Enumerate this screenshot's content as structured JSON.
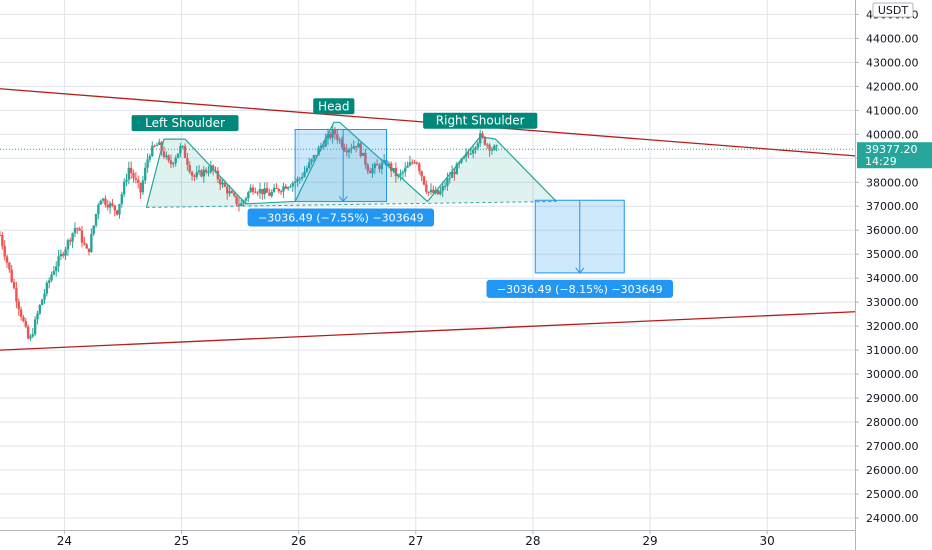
{
  "chart_data": {
    "type": "candlestick",
    "quote_currency": "USDT",
    "x_ticks": [
      "24",
      "25",
      "26",
      "27",
      "28",
      "29",
      "30"
    ],
    "xlim": [
      23.45,
      30.75
    ],
    "ylim": [
      23500,
      45600
    ],
    "y_ticks": [
      "24000.00",
      "25000.00",
      "26000.00",
      "27000.00",
      "28000.00",
      "29000.00",
      "30000.00",
      "31000.00",
      "32000.00",
      "33000.00",
      "34000.00",
      "35000.00",
      "36000.00",
      "37000.00",
      "38000.00",
      "39000.00",
      "40000.00",
      "41000.00",
      "42000.00",
      "43000.00",
      "44000.00",
      "45000.00"
    ],
    "last_price": {
      "value": 39377.2,
      "label": "39377.20",
      "countdown": "14:29"
    },
    "grid": true,
    "series_anchors": [
      [
        23.45,
        35800
      ],
      [
        23.6,
        33000
      ],
      [
        23.7,
        31300
      ],
      [
        23.8,
        33000
      ],
      [
        23.9,
        34300
      ],
      [
        24.0,
        35200
      ],
      [
        24.1,
        36200
      ],
      [
        24.2,
        35000
      ],
      [
        24.3,
        37400
      ],
      [
        24.45,
        36800
      ],
      [
        24.55,
        38600
      ],
      [
        24.65,
        37600
      ],
      [
        24.72,
        39200
      ],
      [
        24.8,
        39600
      ],
      [
        24.9,
        38700
      ],
      [
        25.0,
        39500
      ],
      [
        25.1,
        38200
      ],
      [
        25.25,
        38600
      ],
      [
        25.35,
        37900
      ],
      [
        25.5,
        37000
      ],
      [
        25.6,
        37800
      ],
      [
        25.75,
        37500
      ],
      [
        25.9,
        37900
      ],
      [
        26.0,
        38100
      ],
      [
        26.1,
        38800
      ],
      [
        26.2,
        39600
      ],
      [
        26.3,
        40100
      ],
      [
        26.4,
        39400
      ],
      [
        26.5,
        39600
      ],
      [
        26.6,
        38500
      ],
      [
        26.75,
        38800
      ],
      [
        26.85,
        38200
      ],
      [
        27.0,
        39000
      ],
      [
        27.1,
        37600
      ],
      [
        27.2,
        37500
      ],
      [
        27.3,
        38300
      ],
      [
        27.45,
        39200
      ],
      [
        27.55,
        39900
      ],
      [
        27.65,
        39400
      ],
      [
        27.7,
        39377.2
      ]
    ],
    "trendlines": [
      {
        "from": [
          23.45,
          41900
        ],
        "to": [
          30.75,
          39100
        ]
      },
      {
        "from": [
          23.45,
          31000
        ],
        "to": [
          30.75,
          32600
        ]
      }
    ],
    "pattern": {
      "points": [
        [
          24.7,
          36950
        ],
        [
          24.85,
          39800
        ],
        [
          25.03,
          39800
        ],
        [
          25.55,
          37100
        ],
        [
          25.97,
          37200
        ],
        [
          26.3,
          40500
        ],
        [
          26.35,
          40500
        ],
        [
          27.1,
          37200
        ],
        [
          27.55,
          39900
        ],
        [
          27.68,
          39800
        ],
        [
          28.2,
          37200
        ]
      ],
      "neckline": [
        [
          24.7,
          36950
        ],
        [
          28.2,
          37200
        ]
      ],
      "labels": [
        {
          "text": "Left Shoulder",
          "x": 25.03,
          "y": 39800
        },
        {
          "text": "Head",
          "x": 26.3,
          "y": 40500
        },
        {
          "text": "Right Shoulder",
          "x": 27.55,
          "y": 39900
        }
      ]
    },
    "measurements": [
      {
        "x0": 25.97,
        "x1": 26.75,
        "y_top": 40200,
        "y_bottom": 37200,
        "arrow_x": 26.38,
        "label": "−3036.49 (−7.55%) −303649"
      },
      {
        "x0": 28.02,
        "x1": 28.78,
        "y_top": 37250,
        "y_bottom": 34220,
        "arrow_x": 28.4,
        "label": "−3036.49 (−8.15%) −303649"
      }
    ]
  }
}
